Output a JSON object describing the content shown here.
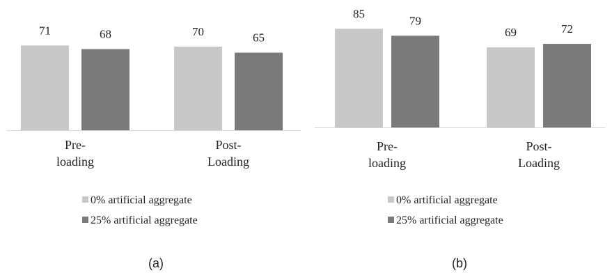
{
  "chart_data": [
    {
      "type": "bar",
      "categories": [
        "Pre-\nloading",
        "Post-\nLoading"
      ],
      "series": [
        {
          "name": "0% artificial aggregate",
          "values": [
            71,
            70
          ],
          "color": "#c8c8c8"
        },
        {
          "name": "25% artificial aggregate",
          "values": [
            68,
            65
          ],
          "color": "#7a7a7a"
        }
      ],
      "ylim": [
        0,
        90
      ],
      "grid": false,
      "legend_placement": "bottom",
      "caption": "(a)"
    },
    {
      "type": "bar",
      "categories": [
        "Pre-\nloading",
        "Post-\nLoading"
      ],
      "series": [
        {
          "name": "0% artificial aggregate",
          "values": [
            85,
            69
          ],
          "color": "#c8c8c8"
        },
        {
          "name": "25% artificial aggregate",
          "values": [
            79,
            72
          ],
          "color": "#7a7a7a"
        }
      ],
      "ylim": [
        0,
        90
      ],
      "grid": false,
      "legend_placement": "bottom",
      "caption": "(b)"
    }
  ]
}
